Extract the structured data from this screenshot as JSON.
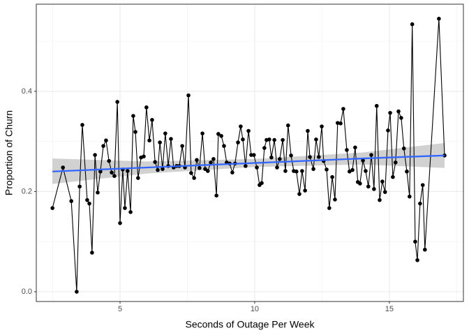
{
  "chart_data": {
    "type": "scatter",
    "x_label": "Seconds of Outage Per Week",
    "y_label": "Proportion of Churn",
    "xlim": [
      1.89,
      17.75
    ],
    "ylim": [
      -0.0195,
      0.574
    ],
    "xticks": [
      5,
      10,
      15
    ],
    "yticks": [
      {
        "value": 0,
        "label": "0.0"
      },
      0.2,
      0.4
    ],
    "x_minor_grid": [
      2.5,
      7.5,
      12.5,
      17.5
    ],
    "y_minor_grid": [
      0.1,
      0.3,
      0.5
    ],
    "grid": true,
    "point_color": "#000000",
    "connect_points": true,
    "x": [
      2.49,
      2.88,
      3.19,
      3.39,
      3.5,
      3.6,
      3.78,
      3.86,
      3.96,
      4.07,
      4.17,
      4.27,
      4.38,
      4.48,
      4.59,
      4.69,
      4.79,
      4.9,
      5.0,
      5.1,
      5.18,
      5.28,
      5.39,
      5.49,
      5.57,
      5.67,
      5.78,
      5.88,
      5.98,
      6.09,
      6.19,
      6.3,
      6.4,
      6.48,
      6.58,
      6.68,
      6.79,
      6.89,
      6.99,
      7.1,
      7.2,
      7.31,
      7.41,
      7.54,
      7.64,
      7.75,
      7.85,
      7.95,
      8.06,
      8.16,
      8.26,
      8.37,
      8.47,
      8.58,
      8.65,
      8.76,
      8.86,
      8.96,
      9.07,
      9.17,
      9.27,
      9.38,
      9.48,
      9.56,
      9.66,
      9.77,
      9.87,
      9.97,
      10.08,
      10.18,
      10.26,
      10.36,
      10.44,
      10.54,
      10.62,
      10.73,
      10.83,
      10.93,
      11.04,
      11.14,
      11.24,
      11.35,
      11.45,
      11.55,
      11.66,
      11.76,
      11.87,
      11.97,
      12.05,
      12.18,
      12.28,
      12.38,
      12.49,
      12.56,
      12.67,
      12.77,
      12.88,
      12.98,
      13.08,
      13.19,
      13.29,
      13.42,
      13.52,
      13.63,
      13.73,
      13.83,
      13.91,
      14.02,
      14.12,
      14.22,
      14.33,
      14.43,
      14.53,
      14.64,
      14.74,
      14.84,
      14.95,
      15.03,
      15.13,
      15.23,
      15.34,
      15.44,
      15.54,
      15.65,
      15.75,
      15.85,
      15.96,
      16.04,
      16.14,
      16.24,
      16.32,
      16.84,
      17.05
    ],
    "values": [
      0.167,
      0.248,
      0.181,
      0,
      0.21,
      0.333,
      0.183,
      0.176,
      0.078,
      0.273,
      0.198,
      0.24,
      0.291,
      0.302,
      0.261,
      0.238,
      0.231,
      0.379,
      0.137,
      0.244,
      0.167,
      0.241,
      0.159,
      0.351,
      0.319,
      0.227,
      0.268,
      0.27,
      0.368,
      0.302,
      0.343,
      0.259,
      0.243,
      0.298,
      0.245,
      0.316,
      0.251,
      0.305,
      0.248,
      0.251,
      0.251,
      0.291,
      0.248,
      0.392,
      0.237,
      0.227,
      0.263,
      0.247,
      0.316,
      0.245,
      0.241,
      0.258,
      0.265,
      0.192,
      0.315,
      0.311,
      0.291,
      0.258,
      0.256,
      0.238,
      0.256,
      0.298,
      0.33,
      0.304,
      0.251,
      0.321,
      0.273,
      0.273,
      0.248,
      0.213,
      0.217,
      0.287,
      0.303,
      0.304,
      0.268,
      0.303,
      0.248,
      0.265,
      0.303,
      0.241,
      0.332,
      0.272,
      0.241,
      0.24,
      0.195,
      0.241,
      0.202,
      0.321,
      0.269,
      0.245,
      0.304,
      0.269,
      0.33,
      0.261,
      0.244,
      0.167,
      0.229,
      0.184,
      0.337,
      0.336,
      0.365,
      0.283,
      0.24,
      0.243,
      0.288,
      0.219,
      0.216,
      0.262,
      0.241,
      0.21,
      0.273,
      0.205,
      0.371,
      0.183,
      0.22,
      0.199,
      0.322,
      0.357,
      0.229,
      0.258,
      0.36,
      0.347,
      0.286,
      0.24,
      0.19,
      0.534,
      0.1,
      0.063,
      0.176,
      0.213,
      0.084,
      0.545,
      0.272
    ],
    "trend": {
      "x": [
        2.49,
        6,
        10,
        14,
        17.05
      ],
      "fit": [
        0.24,
        0.248,
        0.257,
        0.266,
        0.272
      ],
      "lower": [
        0.215,
        0.236,
        0.249,
        0.254,
        0.247
      ],
      "upper": [
        0.266,
        0.26,
        0.265,
        0.278,
        0.297
      ],
      "color": "#3366ff",
      "band_color": "#999999"
    }
  }
}
